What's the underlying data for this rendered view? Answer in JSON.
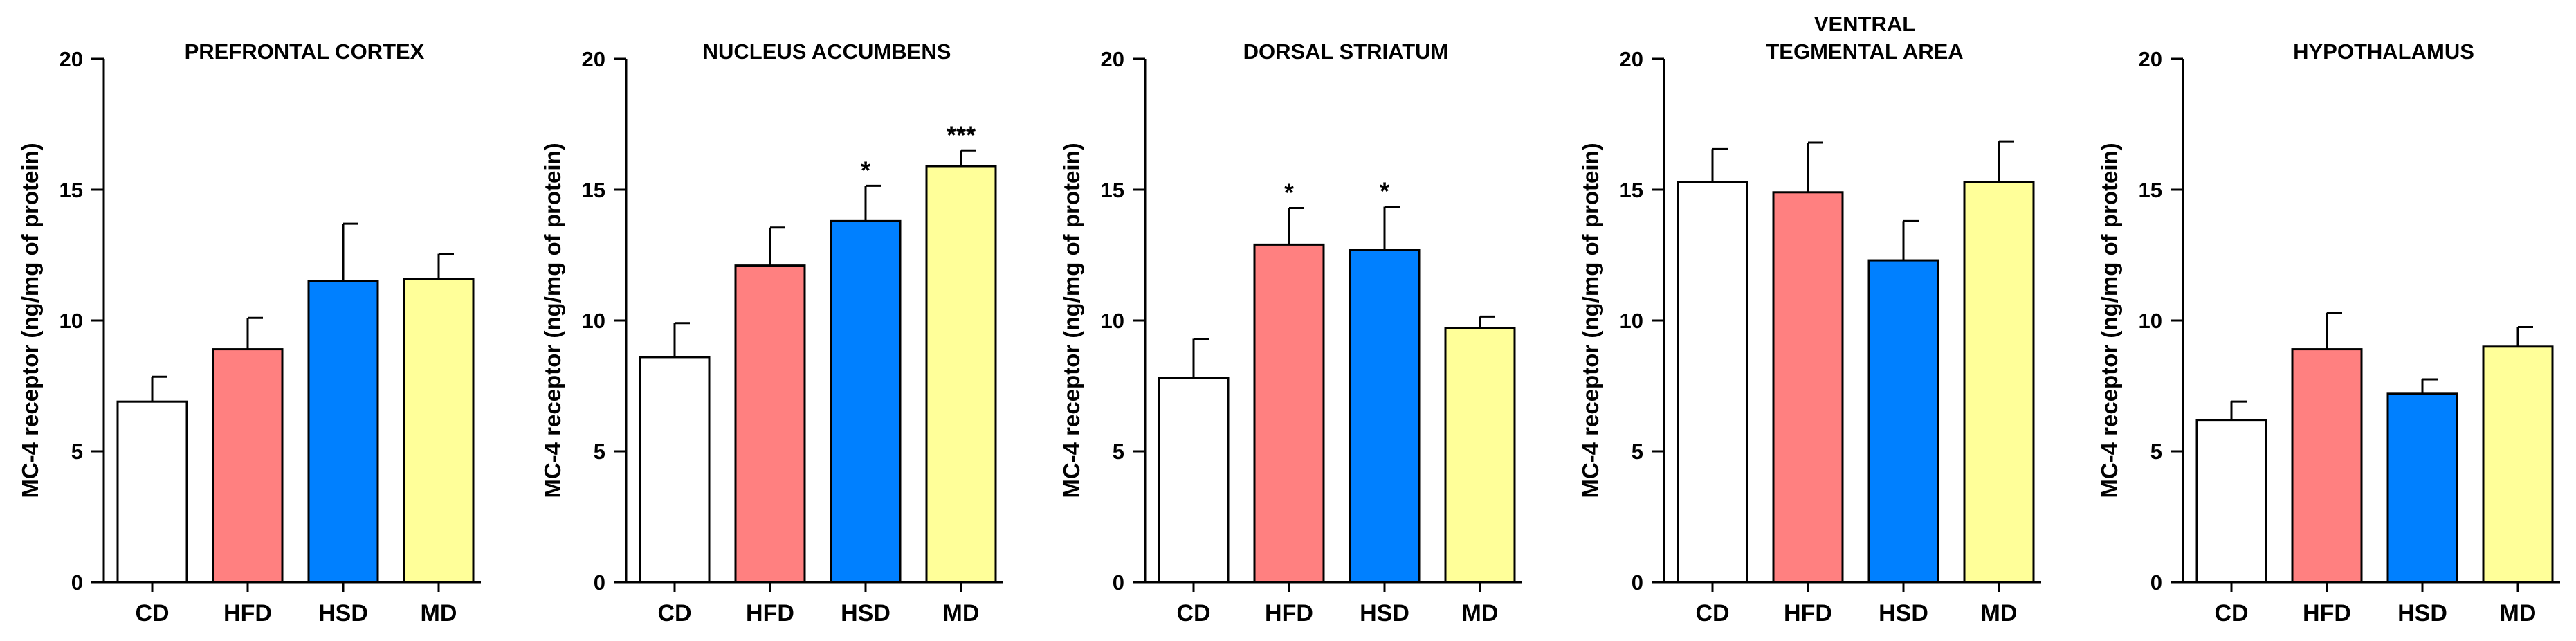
{
  "chart_data": [
    {
      "type": "bar",
      "title": "PREFRONTAL CORTEX",
      "categories": [
        "CD",
        "HFD",
        "HSD",
        "MD"
      ],
      "values": [
        6.9,
        8.9,
        11.5,
        11.6
      ],
      "errors": [
        0.95,
        1.2,
        2.2,
        0.95
      ],
      "significance": [
        "",
        "",
        "",
        ""
      ],
      "ylabel": "MC-4 receptor (ng/mg of protein)",
      "ylim": [
        0,
        20
      ],
      "yticks": [
        0,
        5,
        10,
        15,
        20
      ]
    },
    {
      "type": "bar",
      "title": "NUCLEUS ACCUMBENS",
      "categories": [
        "CD",
        "HFD",
        "HSD",
        "MD"
      ],
      "values": [
        8.6,
        12.1,
        13.8,
        15.9
      ],
      "errors": [
        1.3,
        1.45,
        1.35,
        0.6
      ],
      "significance": [
        "",
        "",
        "*",
        "***"
      ],
      "ylabel": "MC-4 receptor (ng/mg of protein)",
      "ylim": [
        0,
        20
      ],
      "yticks": [
        0,
        5,
        10,
        15,
        20
      ]
    },
    {
      "type": "bar",
      "title": "DORSAL STRIATUM",
      "categories": [
        "CD",
        "HFD",
        "HSD",
        "MD"
      ],
      "values": [
        7.8,
        12.9,
        12.7,
        9.7
      ],
      "errors": [
        1.5,
        1.4,
        1.65,
        0.45
      ],
      "significance": [
        "",
        "*",
        "*",
        ""
      ],
      "ylabel": "MC-4 receptor (ng/mg of protein)",
      "ylim": [
        0,
        20
      ],
      "yticks": [
        0,
        5,
        10,
        15,
        20
      ]
    },
    {
      "type": "bar",
      "title": "VENTRAL\nTEGMENTAL AREA",
      "categories": [
        "CD",
        "HFD",
        "HSD",
        "MD"
      ],
      "values": [
        15.3,
        14.9,
        12.3,
        15.3
      ],
      "errors": [
        1.25,
        1.9,
        1.5,
        1.55
      ],
      "significance": [
        "",
        "",
        "",
        ""
      ],
      "ylabel": "MC-4 receptor (ng/mg of protein)",
      "ylim": [
        0,
        20
      ],
      "yticks": [
        0,
        5,
        10,
        15,
        20
      ]
    },
    {
      "type": "bar",
      "title": "HYPOTHALAMUS",
      "categories": [
        "CD",
        "HFD",
        "HSD",
        "MD"
      ],
      "values": [
        6.2,
        8.9,
        7.2,
        9.0
      ],
      "errors": [
        0.7,
        1.4,
        0.55,
        0.75
      ],
      "significance": [
        "",
        "",
        "",
        ""
      ],
      "ylabel": "MC-4 receptor (ng/mg of protein)",
      "ylim": [
        0,
        20
      ],
      "yticks": [
        0,
        5,
        10,
        15,
        20
      ]
    }
  ],
  "colors": {
    "CD": "#ffffff",
    "HFD": "#ff8080",
    "HSD": "#0080ff",
    "MD": "#ffff99",
    "axis": "#000000"
  }
}
